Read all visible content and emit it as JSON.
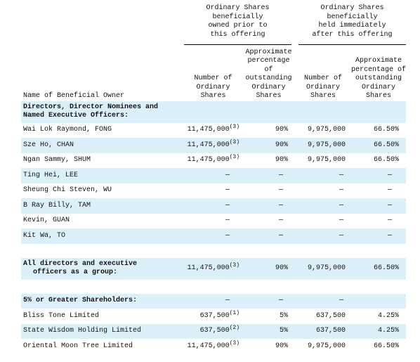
{
  "header": {
    "name_col": "Name of Beneficial Owner",
    "prior_group": "Ordinary Shares\nbeneficially\nowned prior to\nthis offering",
    "after_group": "Ordinary Shares\nbeneficially\nheld immediately\nafter this offering",
    "shares_prior": "Number of\nOrdinary\nShares",
    "pct_prior": "Approximate\npercentage\nof\noutstanding\nOrdinary\nShares",
    "shares_after": "Number of\nOrdinary\nShares",
    "pct_after": "Approximate\npercentage of\noutstanding\nOrdinary\nShares"
  },
  "directors": {
    "heading": "Directors, Director Nominees and\nNamed Executive Officers:",
    "rows": [
      {
        "name": "Wai Lok Raymond, FONG",
        "shares_prior": "11,475,000",
        "note": "(3)",
        "pct_prior": "90%",
        "shares_after": "9,975,000",
        "pct_after": "66.50%"
      },
      {
        "name": "Sze Ho, CHAN",
        "shares_prior": "11,475,000",
        "note": "(3)",
        "pct_prior": "90%",
        "shares_after": "9,975,000",
        "pct_after": "66.50%"
      },
      {
        "name": "Ngan Sammy, SHUM",
        "shares_prior": "11,475,000",
        "note": "(3)",
        "pct_prior": "90%",
        "shares_after": "9,975,000",
        "pct_after": "66.50%"
      },
      {
        "name": "Ting Hei, LEE",
        "shares_prior": "—",
        "pct_prior": "—",
        "shares_after": "—",
        "pct_after": "—"
      },
      {
        "name": "Sheung Chi Steven, WU",
        "shares_prior": "—",
        "pct_prior": "—",
        "shares_after": "—",
        "pct_after": "—"
      },
      {
        "name": "B Ray Billy, TAM",
        "shares_prior": "—",
        "pct_prior": "—",
        "shares_after": "—",
        "pct_after": "—"
      },
      {
        "name": "Kevin, GUAN",
        "shares_prior": "—",
        "pct_prior": "—",
        "shares_after": "—",
        "pct_after": "—"
      },
      {
        "name": "Kit Wa, TO",
        "shares_prior": "—",
        "pct_prior": "—",
        "shares_after": "—",
        "pct_after": "—"
      }
    ]
  },
  "all_directors": {
    "rows": [
      {
        "name": "All directors and executive\nofficers as a group:",
        "shares_prior": "11,475,000",
        "note": "(3)",
        "pct_prior": "90%",
        "shares_after": "9,975,000",
        "pct_after": "66.50%"
      }
    ]
  },
  "shareholders": {
    "heading": "5% or Greater Shareholders:",
    "heading_cells": {
      "shares_prior": "—",
      "pct_prior": "—",
      "shares_after": "—"
    },
    "rows": [
      {
        "name": "Bliss Tone Limited",
        "shares_prior": "637,500",
        "note": "(1)",
        "pct_prior": "5%",
        "shares_after": "637,500",
        "pct_after": "4.25%"
      },
      {
        "name": "State Wisdom Holding Limited",
        "shares_prior": "637,500",
        "note": "(2)",
        "pct_prior": "5%",
        "shares_after": "637,500",
        "pct_after": "4.25%"
      },
      {
        "name": "Oriental Moon Tree Limited",
        "shares_prior": "11,475,000",
        "note": "(3)",
        "pct_prior": "90%",
        "shares_after": "9,975,000",
        "pct_after": "66.50%"
      }
    ]
  }
}
